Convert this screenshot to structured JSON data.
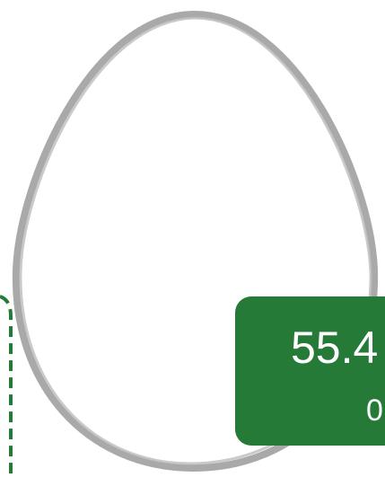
{
  "card": {
    "value": "55.4",
    "sub": "0"
  }
}
